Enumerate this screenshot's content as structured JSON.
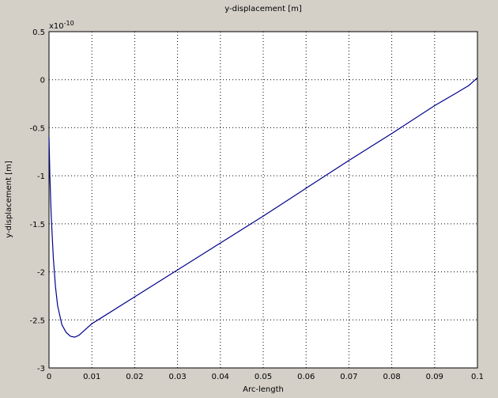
{
  "chart_data": {
    "type": "line",
    "title": "y-displacement [m]",
    "x_label": "Arc-length",
    "y_label": "y-displacement [m]",
    "y_multiplier": {
      "base": "x10",
      "exponent": "-10"
    },
    "x": [
      0,
      0.0002,
      0.0005,
      0.001,
      0.0015,
      0.002,
      0.003,
      0.004,
      0.005,
      0.006,
      0.007,
      0.008,
      0.01,
      0.02,
      0.03,
      0.04,
      0.05,
      0.06,
      0.07,
      0.08,
      0.09,
      0.095,
      0.098,
      0.1
    ],
    "series": [
      {
        "name": "y-displacement",
        "color": "#00008b",
        "values": [
          -0.6,
          -1.0,
          -1.4,
          -1.85,
          -2.15,
          -2.35,
          -2.55,
          -2.63,
          -2.67,
          -2.68,
          -2.66,
          -2.62,
          -2.54,
          -2.26,
          -1.98,
          -1.7,
          -1.42,
          -1.13,
          -0.84,
          -0.56,
          -0.27,
          -0.14,
          -0.06,
          0.02
        ]
      }
    ],
    "xlim": [
      0,
      0.1
    ],
    "xticks": [
      0,
      0.01,
      0.02,
      0.03,
      0.04,
      0.05,
      0.06,
      0.07,
      0.08,
      0.09,
      0.1
    ],
    "ylim": [
      -3,
      0.5
    ],
    "yticks": [
      -3,
      -2.5,
      -2,
      -1.5,
      -1,
      -0.5,
      0,
      0.5
    ],
    "grid": true
  }
}
